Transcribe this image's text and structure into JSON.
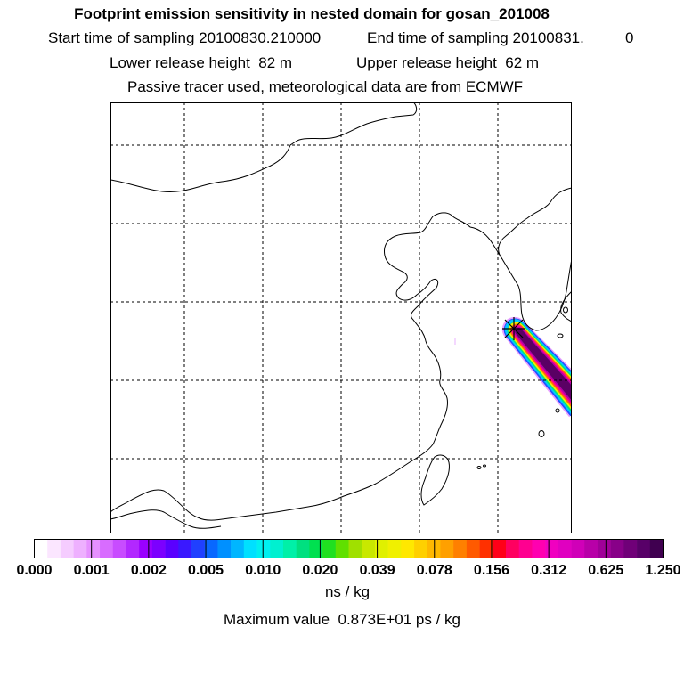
{
  "header": {
    "title": "Footprint emission sensitivity in nested domain for gosan_201008",
    "start_label": "Start time of sampling",
    "start_value": "20100830.210000",
    "end_label": "End time of sampling",
    "end_value": "20100831.",
    "end_extra": "0",
    "lower_label": "Lower release height",
    "lower_value": "82 m",
    "upper_label": "Upper release height",
    "upper_value": "62 m",
    "tracer_note": "Passive tracer used, meteorological data are from ECMWF"
  },
  "chart_data": {
    "type": "heatmap",
    "title": "Footprint emission sensitivity in nested domain for gosan_201008",
    "colorbar": {
      "tick_labels": [
        "0.000",
        "0.001",
        "0.002",
        "0.005",
        "0.010",
        "0.020",
        "0.039",
        "0.078",
        "0.156",
        "0.312",
        "0.625",
        "1.250"
      ],
      "colors": [
        "#ffffff",
        "#fbe6ff",
        "#f5ccff",
        "#eeb0ff",
        "#e690ff",
        "#d86cff",
        "#c84cff",
        "#b228ff",
        "#9a00ff",
        "#7c00ff",
        "#5a00ff",
        "#3a18ff",
        "#2040ff",
        "#0868ff",
        "#0090ff",
        "#00b6ff",
        "#00e0ff",
        "#00f0f0",
        "#00f0d0",
        "#00f0a8",
        "#00e080",
        "#00e050",
        "#20e020",
        "#60e000",
        "#a0e000",
        "#c8e800",
        "#e0f000",
        "#f0f000",
        "#ffe800",
        "#ffd000",
        "#ffb800",
        "#ffa000",
        "#ff8000",
        "#ff5a00",
        "#ff3000",
        "#ff0018",
        "#ff0060",
        "#ff0090",
        "#ff00b0",
        "#f000c0",
        "#e000c0",
        "#d000b8",
        "#b800a8",
        "#a00098",
        "#880088",
        "#700078",
        "#580068",
        "#400050"
      ],
      "units": "ns / kg"
    },
    "plume": [
      {
        "level": 0.001,
        "color": "#e8a0ff"
      },
      {
        "level": 0.005,
        "color": "#1e50ff"
      },
      {
        "level": 0.01,
        "color": "#00c8ff"
      },
      {
        "level": 0.02,
        "color": "#00e878"
      },
      {
        "level": 0.078,
        "color": "#f0f000"
      },
      {
        "level": 0.156,
        "color": "#ff7000"
      },
      {
        "level": 0.312,
        "color": "#ff0090"
      },
      {
        "level": 0.625,
        "color": "#b000a8"
      },
      {
        "level": 1.25,
        "color": "#5a0064"
      }
    ],
    "receptor_marker": "x",
    "max_value_label": "Maximum value",
    "max_value": "0.873E+01 ps / kg"
  }
}
